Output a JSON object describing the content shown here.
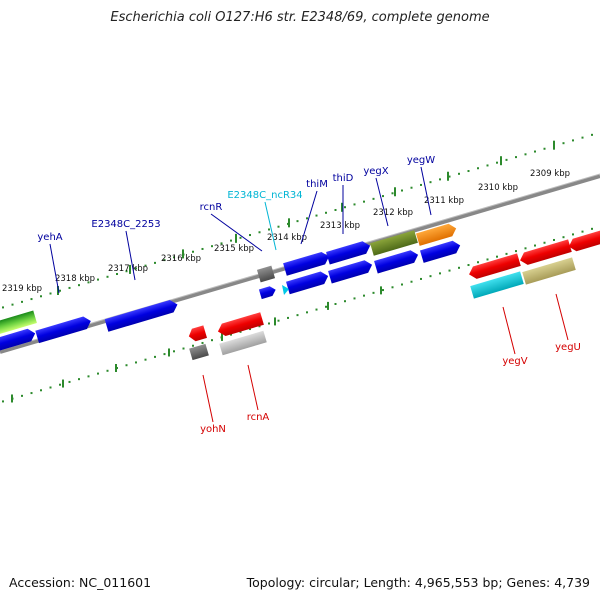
{
  "title": "Escherichia coli O127:H6 str. E2348/69, complete genome",
  "footer": {
    "accession": "Accession: NC_011601",
    "topology": "Topology: circular; Length: 4,965,553 bp; Genes: 4,739"
  },
  "colors": {
    "forward_label": "#00009e",
    "reverse_label": "#d40000",
    "ncrna_label": "#00b5d4",
    "backbone": "#888888",
    "tick": "#2c8a2c"
  },
  "scale_labels": [
    "2319 kbp",
    "2318 kbp",
    "2317 kbp",
    "2316 kbp",
    "2315 kbp",
    "2314 kbp",
    "2313 kbp",
    "2312 kbp",
    "2311 kbp",
    "2310 kbp",
    "2309 kbp"
  ],
  "gene_labels": {
    "forward": [
      "yehA",
      "E2348C_2253",
      "rcnR",
      "thiM",
      "thiD",
      "yegX",
      "yegW"
    ],
    "ncrna": [
      "E2348C_ncR34"
    ],
    "reverse": [
      "yohN",
      "rcnA",
      "yegV",
      "yegU"
    ]
  }
}
